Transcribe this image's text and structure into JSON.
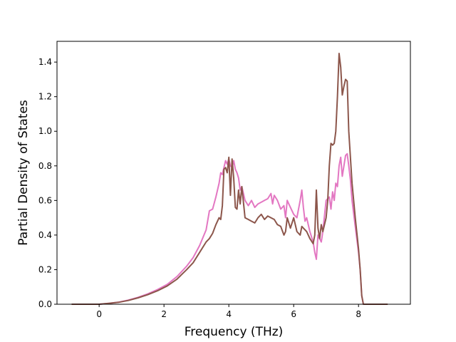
{
  "chart_data": {
    "type": "line",
    "title": "",
    "xlabel": "Frequency (THz)",
    "ylabel": "Partial Density of States",
    "xlim": [
      -1.3,
      9.6
    ],
    "ylim": [
      0.0,
      1.52
    ],
    "xticks": [
      0,
      2,
      4,
      6,
      8
    ],
    "yticks": [
      0.0,
      0.2,
      0.4,
      0.6,
      0.8,
      1.0,
      1.2,
      1.4
    ],
    "xtick_labels": [
      "0",
      "2",
      "4",
      "6",
      "8"
    ],
    "ytick_labels": [
      "0.0",
      "0.2",
      "0.4",
      "0.6",
      "0.8",
      "1.0",
      "1.2",
      "1.4"
    ],
    "grid": false,
    "legend": "none",
    "series": [
      {
        "color": "#e377c2",
        "x": [
          -0.85,
          -0.3,
          0,
          0.3,
          0.6,
          0.9,
          1.2,
          1.5,
          1.8,
          2.1,
          2.4,
          2.7,
          2.9,
          3.1,
          3.3,
          3.4,
          3.5,
          3.6,
          3.7,
          3.75,
          3.8,
          3.85,
          3.9,
          3.95,
          4.0,
          4.05,
          4.1,
          4.15,
          4.2,
          4.25,
          4.3,
          4.35,
          4.4,
          4.5,
          4.6,
          4.7,
          4.8,
          4.9,
          5.0,
          5.1,
          5.2,
          5.3,
          5.35,
          5.4,
          5.5,
          5.6,
          5.7,
          5.75,
          5.8,
          5.9,
          6.0,
          6.1,
          6.2,
          6.25,
          6.3,
          6.35,
          6.4,
          6.5,
          6.6,
          6.65,
          6.7,
          6.75,
          6.8,
          6.85,
          6.9,
          7.0,
          7.1,
          7.15,
          7.2,
          7.25,
          7.3,
          7.35,
          7.4,
          7.45,
          7.5,
          7.55,
          7.6,
          7.65,
          7.7,
          7.75,
          7.8,
          7.9,
          8.0,
          8.05,
          8.1,
          8.15,
          8.5,
          8.9
        ],
        "y": [
          0,
          0,
          0.0,
          0.005,
          0.012,
          0.024,
          0.04,
          0.06,
          0.085,
          0.115,
          0.16,
          0.22,
          0.27,
          0.34,
          0.43,
          0.54,
          0.55,
          0.62,
          0.7,
          0.76,
          0.75,
          0.79,
          0.83,
          0.81,
          0.84,
          0.8,
          0.79,
          0.83,
          0.78,
          0.76,
          0.73,
          0.66,
          0.68,
          0.6,
          0.57,
          0.6,
          0.56,
          0.58,
          0.59,
          0.6,
          0.61,
          0.64,
          0.58,
          0.63,
          0.6,
          0.55,
          0.57,
          0.5,
          0.6,
          0.56,
          0.52,
          0.5,
          0.6,
          0.66,
          0.56,
          0.48,
          0.5,
          0.42,
          0.36,
          0.3,
          0.26,
          0.4,
          0.38,
          0.36,
          0.42,
          0.6,
          0.62,
          0.55,
          0.65,
          0.6,
          0.7,
          0.68,
          0.8,
          0.85,
          0.74,
          0.8,
          0.86,
          0.87,
          0.8,
          0.72,
          0.6,
          0.45,
          0.3,
          0.2,
          0.05,
          0.0,
          0.0,
          0.0
        ]
      },
      {
        "color": "#8c564b",
        "x": [
          -0.85,
          -0.3,
          0,
          0.3,
          0.6,
          0.9,
          1.2,
          1.5,
          1.8,
          2.1,
          2.4,
          2.7,
          2.9,
          3.1,
          3.3,
          3.4,
          3.5,
          3.6,
          3.7,
          3.75,
          3.8,
          3.85,
          3.9,
          3.95,
          4.0,
          4.05,
          4.1,
          4.15,
          4.2,
          4.25,
          4.3,
          4.35,
          4.4,
          4.5,
          4.6,
          4.7,
          4.8,
          4.9,
          5.0,
          5.1,
          5.2,
          5.3,
          5.4,
          5.5,
          5.6,
          5.7,
          5.75,
          5.8,
          5.9,
          6.0,
          6.1,
          6.2,
          6.25,
          6.3,
          6.4,
          6.5,
          6.6,
          6.65,
          6.7,
          6.75,
          6.8,
          6.85,
          6.9,
          7.0,
          7.05,
          7.1,
          7.15,
          7.2,
          7.25,
          7.3,
          7.35,
          7.4,
          7.45,
          7.5,
          7.55,
          7.6,
          7.65,
          7.7,
          7.8,
          7.9,
          8.0,
          8.05,
          8.1,
          8.15,
          8.5,
          8.9
        ],
        "y": [
          0,
          0,
          0.0,
          0.005,
          0.011,
          0.022,
          0.037,
          0.055,
          0.078,
          0.106,
          0.145,
          0.2,
          0.24,
          0.3,
          0.36,
          0.38,
          0.41,
          0.46,
          0.5,
          0.49,
          0.57,
          0.78,
          0.79,
          0.76,
          0.85,
          0.63,
          0.84,
          0.73,
          0.56,
          0.55,
          0.66,
          0.58,
          0.68,
          0.5,
          0.49,
          0.48,
          0.47,
          0.5,
          0.52,
          0.49,
          0.51,
          0.5,
          0.49,
          0.46,
          0.45,
          0.4,
          0.42,
          0.5,
          0.44,
          0.5,
          0.42,
          0.4,
          0.45,
          0.44,
          0.42,
          0.38,
          0.35,
          0.4,
          0.66,
          0.44,
          0.38,
          0.46,
          0.42,
          0.5,
          0.6,
          0.8,
          0.93,
          0.92,
          0.93,
          1.0,
          1.2,
          1.45,
          1.37,
          1.21,
          1.26,
          1.3,
          1.29,
          1.0,
          0.7,
          0.5,
          0.32,
          0.2,
          0.05,
          0.0,
          0.0,
          0.0
        ]
      }
    ]
  }
}
